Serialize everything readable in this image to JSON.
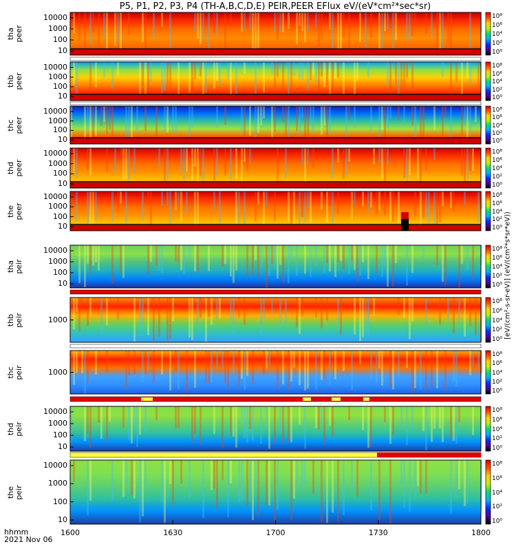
{
  "title": "P5, P1, P2, P3, P4 (TH-A,B,C,D,E) PEIR,PEER EFlux eV/(eV*cm²*sec*sr)",
  "x_axis": {
    "unit_label": "hhmm",
    "date_label": "2021 Nov 06",
    "ticks": [
      "1600",
      "1630",
      "1700",
      "1730",
      "1800"
    ]
  },
  "colorbar": {
    "unit_label": "[eV/(cm²-s-sr-eV)] (eV/(cm²*s*sr*eV))",
    "ticks": [
      "10⁰",
      "10²",
      "10⁴",
      "10⁶",
      "10⁸"
    ]
  },
  "panels": [
    {
      "name": "tha peer",
      "line1": "tha",
      "line2": "peer",
      "yticks": [
        "10000",
        "1000",
        "100",
        "10"
      ]
    },
    {
      "name": "thb peer",
      "line1": "thb",
      "line2": "peer",
      "yticks": [
        "10000",
        "1000",
        "100",
        "10"
      ]
    },
    {
      "name": "thc peer",
      "line1": "thc",
      "line2": "peer",
      "yticks": [
        "10000",
        "1000",
        "100",
        "10"
      ]
    },
    {
      "name": "thd peer",
      "line1": "thd",
      "line2": "peer",
      "yticks": [
        "10000",
        "1000",
        "100",
        "10"
      ]
    },
    {
      "name": "the peer",
      "line1": "the",
      "line2": "peer",
      "yticks": [
        "10000",
        "1000",
        "100",
        "10"
      ]
    },
    {
      "name": "tha peir",
      "line1": "tha",
      "line2": "peir",
      "yticks": [
        "10000",
        "1000",
        "100",
        "10"
      ]
    },
    {
      "name": "thb peir",
      "line1": "thb",
      "line2": "peir",
      "yticks": [
        "1000"
      ]
    },
    {
      "name": "thc peir",
      "line1": "thc",
      "line2": "peir",
      "yticks": [
        "1000"
      ]
    },
    {
      "name": "thd peir",
      "line1": "thd",
      "line2": "peir",
      "yticks": [
        "10000",
        "1000",
        "100",
        "10"
      ]
    },
    {
      "name": "the peir",
      "line1": "the",
      "line2": "peir",
      "yticks": [
        "10000",
        "1000",
        "100",
        "10"
      ]
    }
  ],
  "chart_data": {
    "type": "heatmap",
    "title": "P5, P1, P2, P3, P4 (TH-A,B,C,D,E) PEIR,PEER EFlux eV/(eV*cm²*sec*sr)",
    "x_range": [
      "16:00",
      "18:00"
    ],
    "x_ticks": [
      "1600",
      "1630",
      "1700",
      "1730",
      "1800"
    ],
    "y_scale": "log",
    "y_range_peer": [
      7,
      30000
    ],
    "z_scale": "log",
    "z_range": [
      1,
      100000000
    ],
    "series": [
      {
        "name": "tha peer",
        "dominant_level": "high (red/orange)"
      },
      {
        "name": "thb peer",
        "dominant_level": "banded, red at low energy"
      },
      {
        "name": "thc peer",
        "dominant_level": "banded, red at low energy"
      },
      {
        "name": "thd peer",
        "dominant_level": "high (red/orange)"
      },
      {
        "name": "the peer",
        "dominant_level": "high (red/orange)",
        "data_gap": "~1730"
      },
      {
        "name": "tha peir",
        "dominant_level": "moderate (green)"
      },
      {
        "name": "thb peir",
        "dominant_level": "red band near 1000 eV"
      },
      {
        "name": "thc peir",
        "dominant_level": "red band near 1000 eV"
      },
      {
        "name": "thd peir",
        "dominant_level": "moderate (green)"
      },
      {
        "name": "the peir",
        "dominant_level": "moderate (green)"
      }
    ]
  }
}
